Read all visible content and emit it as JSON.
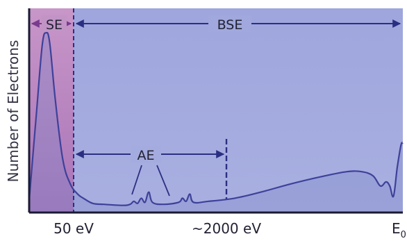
{
  "chart_data": {
    "type": "line",
    "title": "",
    "ylabel": "Number of Electrons",
    "xlabel": "",
    "x_tick_labels": [
      "50 eV",
      "~2000 eV",
      "E"
    ],
    "x_tick_subscript": "0",
    "regions": [
      {
        "name": "SE",
        "color": "#b484c4"
      },
      {
        "name": "BSE",
        "color": "#a8aedd"
      }
    ],
    "annotations": {
      "auger": "AE"
    },
    "series": [
      {
        "color": "#4a4ea6",
        "points": [
          [
            0.0,
            0.06
          ],
          [
            0.02,
            0.5
          ],
          [
            0.035,
            0.82
          ],
          [
            0.045,
            0.88
          ],
          [
            0.055,
            0.83
          ],
          [
            0.07,
            0.55
          ],
          [
            0.09,
            0.26
          ],
          [
            0.11,
            0.14
          ],
          [
            0.13,
            0.09
          ],
          [
            0.145,
            0.07
          ],
          [
            0.17,
            0.045
          ],
          [
            0.2,
            0.04
          ],
          [
            0.25,
            0.035
          ],
          [
            0.27,
            0.04
          ],
          [
            0.28,
            0.055
          ],
          [
            0.29,
            0.045
          ],
          [
            0.3,
            0.07
          ],
          [
            0.31,
            0.05
          ],
          [
            0.32,
            0.1
          ],
          [
            0.33,
            0.05
          ],
          [
            0.36,
            0.04
          ],
          [
            0.4,
            0.05
          ],
          [
            0.41,
            0.07
          ],
          [
            0.42,
            0.055
          ],
          [
            0.43,
            0.09
          ],
          [
            0.44,
            0.05
          ],
          [
            0.48,
            0.055
          ],
          [
            0.55,
            0.07
          ],
          [
            0.62,
            0.1
          ],
          [
            0.7,
            0.14
          ],
          [
            0.78,
            0.175
          ],
          [
            0.85,
            0.2
          ],
          [
            0.89,
            0.2
          ],
          [
            0.92,
            0.18
          ],
          [
            0.94,
            0.13
          ],
          [
            0.955,
            0.15
          ],
          [
            0.965,
            0.13
          ],
          [
            0.975,
            0.08
          ],
          [
            0.985,
            0.22
          ],
          [
            0.995,
            0.33
          ],
          [
            1.0,
            0.34
          ]
        ]
      }
    ]
  }
}
